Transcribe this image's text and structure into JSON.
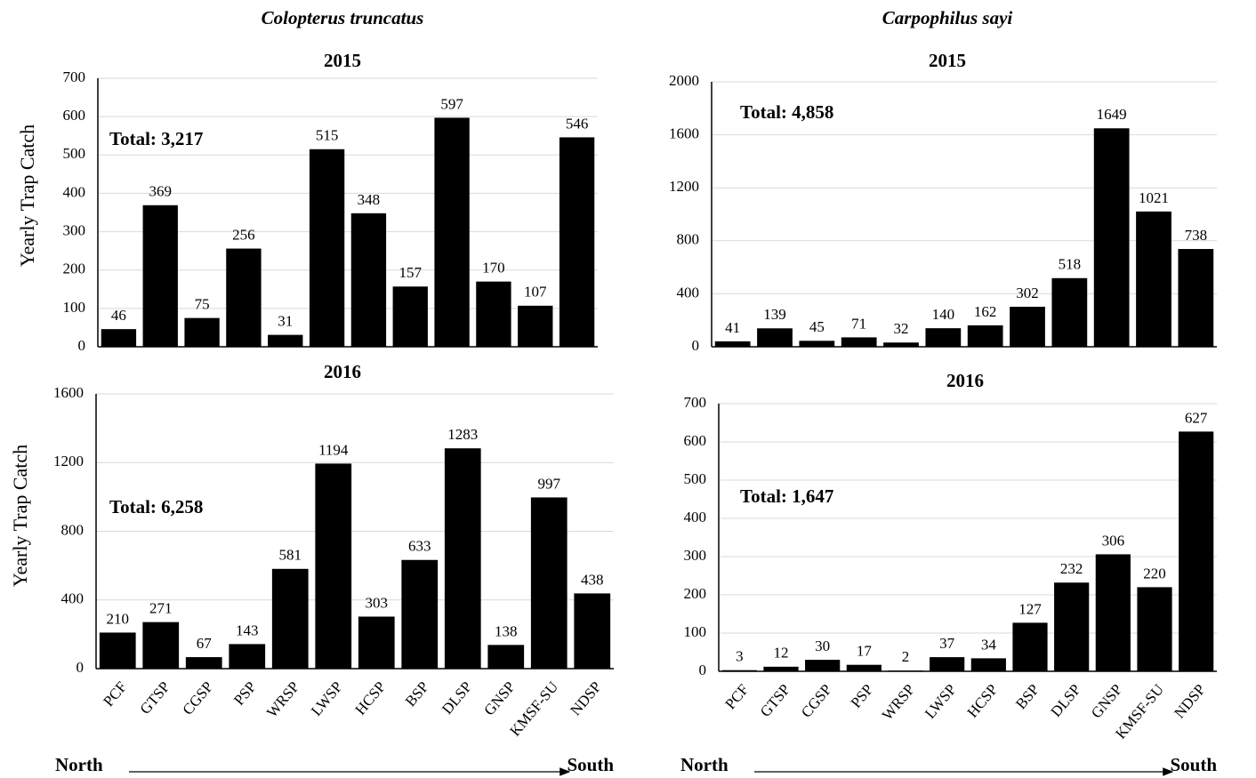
{
  "chart_data": [
    {
      "type": "bar",
      "suptitle": "Colopterus truncatus",
      "title": "2015",
      "ylabel": "Yearly Trap Catch",
      "annotation": "Total: 3,217",
      "categories": [
        null,
        null,
        null,
        null,
        null,
        null,
        null,
        null,
        null,
        null,
        null,
        null
      ],
      "values": [
        46,
        369,
        75,
        256,
        31,
        515,
        348,
        157,
        597,
        170,
        107,
        546
      ],
      "color": "#000000",
      "ylim": [
        0,
        700
      ],
      "yticks": [
        0,
        100,
        200,
        300,
        400,
        500,
        600,
        700
      ],
      "grid": true
    },
    {
      "type": "bar",
      "title": "2016",
      "ylabel": "Yearly Trap Catch",
      "annotation": "Total: 6,258",
      "categories": [
        "PCF",
        "GTSP",
        "CGSP",
        "PSP",
        "WRSP",
        "LWSP",
        "HCSP",
        "BSP",
        "DLSP",
        "GNSP",
        "KMSF-SU",
        "NDSP"
      ],
      "values": [
        210,
        271,
        67,
        143,
        581,
        1194,
        303,
        633,
        1283,
        138,
        997,
        438
      ],
      "color": "#000000",
      "ylim": [
        0,
        1600
      ],
      "yticks": [
        0,
        400,
        800,
        1200,
        1600
      ],
      "grid": true,
      "x_start_label": "North",
      "x_end_label": "South"
    },
    {
      "type": "bar",
      "suptitle": "Carpophilus sayi",
      "title": "2015",
      "annotation": "Total: 4,858",
      "categories": [
        null,
        null,
        null,
        null,
        null,
        null,
        null,
        null,
        null,
        null,
        null,
        null
      ],
      "values": [
        41,
        139,
        45,
        71,
        32,
        140,
        162,
        302,
        518,
        1649,
        1021,
        738
      ],
      "color": "#000000",
      "ylim": [
        0,
        2000
      ],
      "yticks": [
        0,
        400,
        800,
        1200,
        1600,
        2000
      ],
      "grid": true
    },
    {
      "type": "bar",
      "title": "2016",
      "annotation": "Total: 1,647",
      "categories": [
        "PCF",
        "GTSP",
        "CGSP",
        "PSP",
        "WRSP",
        "LWSP",
        "HCSP",
        "BSP",
        "DLSP",
        "GNSP",
        "KMSF-SU",
        "NDSP"
      ],
      "values": [
        3,
        12,
        30,
        17,
        2,
        37,
        34,
        127,
        232,
        306,
        220,
        627
      ],
      "color": "#000000",
      "ylim": [
        0,
        700
      ],
      "yticks": [
        0,
        100,
        200,
        300,
        400,
        500,
        600,
        700
      ],
      "grid": true,
      "x_start_label": "North",
      "x_end_label": "South"
    }
  ]
}
